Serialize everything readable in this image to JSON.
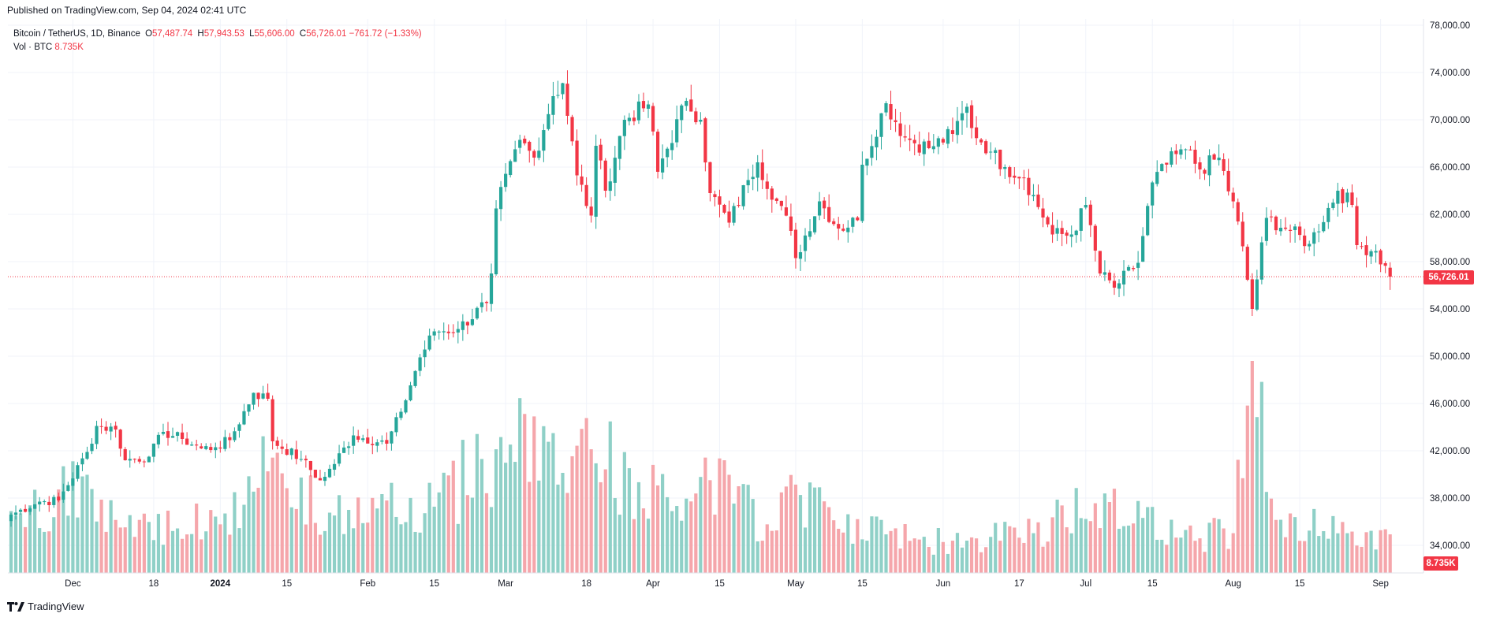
{
  "header": {
    "published": "Published on TradingView.com, Sep 04, 2024 02:41 UTC"
  },
  "legend": {
    "symbol": "Bitcoin / TetherUS, 1D, Binance",
    "open_label": "O",
    "open": "57,487.74",
    "high_label": "H",
    "high": "57,943.53",
    "low_label": "L",
    "low": "55,606.00",
    "close_label": "C",
    "close": "56,726.01",
    "change": "−761.72 (−1.33%)",
    "vol_label": "Vol · BTC",
    "vol_value": "8.735K"
  },
  "badges": {
    "last_price": "56,726.01",
    "last_volume": "8.735K"
  },
  "footer": {
    "brand": "TradingView"
  },
  "colors": {
    "up": "#26a69a",
    "down": "#f23645",
    "vol_up": "#8fd0c7",
    "vol_down": "#f5a6ab",
    "grid": "#f0f3fa"
  },
  "chart_data": {
    "type": "candlestick",
    "title": "Bitcoin / TetherUS, 1D, Binance",
    "ylim": [
      34000,
      78000
    ],
    "y_ticks": [
      "78,000.00",
      "74,000.00",
      "70,000.00",
      "66,000.00",
      "62,000.00",
      "58,000.00",
      "54,000.00",
      "50,000.00",
      "46,000.00",
      "42,000.00",
      "38,000.00",
      "34,000.00"
    ],
    "y_tick_values": [
      78000,
      74000,
      70000,
      66000,
      62000,
      58000,
      54000,
      50000,
      46000,
      42000,
      38000,
      34000
    ],
    "x_ticks": [
      {
        "date": "2023-12-01",
        "label": "Dec",
        "bold": false
      },
      {
        "date": "2023-12-18",
        "label": "18",
        "bold": false
      },
      {
        "date": "2024-01-01",
        "label": "2024",
        "bold": true
      },
      {
        "date": "2024-01-15",
        "label": "15",
        "bold": false
      },
      {
        "date": "2024-02-01",
        "label": "Feb",
        "bold": false
      },
      {
        "date": "2024-02-15",
        "label": "15",
        "bold": false
      },
      {
        "date": "2024-03-01",
        "label": "Mar",
        "bold": false
      },
      {
        "date": "2024-03-18",
        "label": "18",
        "bold": false
      },
      {
        "date": "2024-04-01",
        "label": "Apr",
        "bold": false
      },
      {
        "date": "2024-04-15",
        "label": "15",
        "bold": false
      },
      {
        "date": "2024-05-01",
        "label": "May",
        "bold": false
      },
      {
        "date": "2024-05-15",
        "label": "15",
        "bold": false
      },
      {
        "date": "2024-06-01",
        "label": "Jun",
        "bold": false
      },
      {
        "date": "2024-06-17",
        "label": "17",
        "bold": false
      },
      {
        "date": "2024-07-01",
        "label": "Jul",
        "bold": false
      },
      {
        "date": "2024-07-15",
        "label": "15",
        "bold": false
      },
      {
        "date": "2024-08-01",
        "label": "Aug",
        "bold": false
      },
      {
        "date": "2024-08-15",
        "label": "15",
        "bold": false
      },
      {
        "date": "2024-09-01",
        "label": "Sep",
        "bold": false
      }
    ],
    "first_date": "2023-11-18",
    "last_price": 56726.01,
    "close_keypoints": [
      [
        "2023-11-18",
        36600
      ],
      [
        "2023-11-24",
        37700
      ],
      [
        "2023-11-28",
        37800
      ],
      [
        "2023-12-04",
        41900
      ],
      [
        "2023-12-06",
        44100
      ],
      [
        "2023-12-10",
        43800
      ],
      [
        "2023-12-12",
        41200
      ],
      [
        "2023-12-17",
        41500
      ],
      [
        "2023-12-20",
        43600
      ],
      [
        "2023-12-24",
        43000
      ],
      [
        "2023-12-28",
        42200
      ],
      [
        "2023-12-31",
        42300
      ],
      [
        "2024-01-03",
        42900
      ],
      [
        "2024-01-08",
        46900
      ],
      [
        "2024-01-11",
        46400
      ],
      [
        "2024-01-12",
        42800
      ],
      [
        "2024-01-18",
        41300
      ],
      [
        "2024-01-22",
        39500
      ],
      [
        "2024-01-23",
        39800
      ],
      [
        "2024-01-29",
        43300
      ],
      [
        "2024-02-05",
        42600
      ],
      [
        "2024-02-08",
        45300
      ],
      [
        "2024-02-12",
        49900
      ],
      [
        "2024-02-15",
        52100
      ],
      [
        "2024-02-20",
        52300
      ],
      [
        "2024-02-26",
        54500
      ],
      [
        "2024-02-27",
        57000
      ],
      [
        "2024-02-28",
        62500
      ],
      [
        "2024-03-04",
        68300
      ],
      [
        "2024-03-07",
        66800
      ],
      [
        "2024-03-11",
        72000
      ],
      [
        "2024-03-13",
        73100
      ],
      [
        "2024-03-16",
        65300
      ],
      [
        "2024-03-19",
        61900
      ],
      [
        "2024-03-20",
        67800
      ],
      [
        "2024-03-22",
        64000
      ],
      [
        "2024-03-26",
        70000
      ],
      [
        "2024-03-31",
        71300
      ],
      [
        "2024-04-02",
        65600
      ],
      [
        "2024-04-08",
        71600
      ],
      [
        "2024-04-11",
        70000
      ],
      [
        "2024-04-13",
        63800
      ],
      [
        "2024-04-17",
        61300
      ],
      [
        "2024-04-21",
        64900
      ],
      [
        "2024-04-23",
        66400
      ],
      [
        "2024-04-30",
        60600
      ],
      [
        "2024-05-01",
        58300
      ],
      [
        "2024-05-06",
        63100
      ],
      [
        "2024-05-10",
        60800
      ],
      [
        "2024-05-14",
        61500
      ],
      [
        "2024-05-15",
        66200
      ],
      [
        "2024-05-20",
        71400
      ],
      [
        "2024-05-24",
        68500
      ],
      [
        "2024-05-29",
        67600
      ],
      [
        "2024-06-03",
        68800
      ],
      [
        "2024-06-06",
        71100
      ],
      [
        "2024-06-07",
        69300
      ],
      [
        "2024-06-11",
        67300
      ],
      [
        "2024-06-14",
        66000
      ],
      [
        "2024-06-18",
        65100
      ],
      [
        "2024-06-24",
        60300
      ],
      [
        "2024-06-28",
        60300
      ],
      [
        "2024-07-01",
        62800
      ],
      [
        "2024-07-04",
        57000
      ],
      [
        "2024-07-07",
        55800
      ],
      [
        "2024-07-12",
        57900
      ],
      [
        "2024-07-15",
        64700
      ],
      [
        "2024-07-20",
        67100
      ],
      [
        "2024-07-22",
        67500
      ],
      [
        "2024-07-25",
        65800
      ],
      [
        "2024-07-29",
        66800
      ],
      [
        "2024-08-02",
        61400
      ],
      [
        "2024-08-05",
        54000
      ],
      [
        "2024-08-08",
        61700
      ],
      [
        "2024-08-13",
        60600
      ],
      [
        "2024-08-17",
        59500
      ],
      [
        "2024-08-23",
        64000
      ],
      [
        "2024-08-26",
        62800
      ],
      [
        "2024-08-27",
        59400
      ],
      [
        "2024-08-31",
        58900
      ],
      [
        "2024-09-03",
        56726
      ]
    ],
    "volume_keypoints": [
      [
        "2023-11-18",
        14000
      ],
      [
        "2023-12-05",
        19000
      ],
      [
        "2023-12-10",
        12000
      ],
      [
        "2024-01-01",
        11000
      ],
      [
        "2024-01-11",
        23000
      ],
      [
        "2024-01-25",
        13000
      ],
      [
        "2024-02-15",
        15000
      ],
      [
        "2024-02-28",
        28000
      ],
      [
        "2024-03-05",
        36000
      ],
      [
        "2024-03-12",
        20000
      ],
      [
        "2024-03-19",
        28000
      ],
      [
        "2024-04-05",
        14000
      ],
      [
        "2024-04-13",
        21000
      ],
      [
        "2024-04-25",
        11000
      ],
      [
        "2024-05-01",
        20000
      ],
      [
        "2024-05-10",
        10000
      ],
      [
        "2024-06-01",
        7000
      ],
      [
        "2024-06-20",
        9000
      ],
      [
        "2024-07-05",
        18000
      ],
      [
        "2024-07-20",
        8000
      ],
      [
        "2024-08-01",
        9000
      ],
      [
        "2024-08-05",
        48000
      ],
      [
        "2024-08-10",
        12000
      ],
      [
        "2024-08-25",
        9000
      ],
      [
        "2024-09-03",
        8735
      ]
    ],
    "volume_max_scale": 48000,
    "last_volume": 8735
  }
}
